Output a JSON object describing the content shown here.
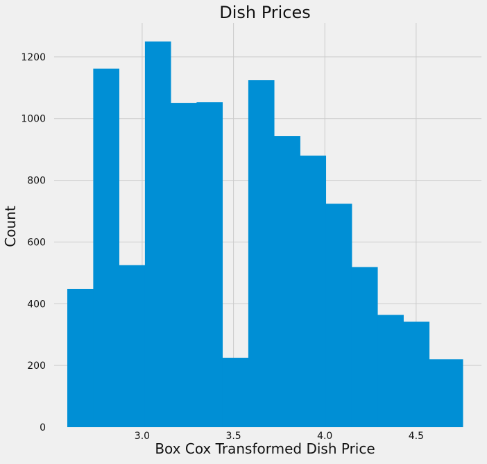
{
  "chart_data": {
    "type": "bar",
    "title": "Dish Prices",
    "xlabel": "Box Cox Transformed Dish Price",
    "ylabel": "Count",
    "xlim": [
      2.59,
      4.755
    ],
    "ylim": [
      0,
      1310
    ],
    "xticks": [
      3.0,
      3.5,
      4.0,
      4.5
    ],
    "xtick_labels": [
      "3.0",
      "3.5",
      "4.0",
      "4.5"
    ],
    "yticks": [
      0,
      200,
      400,
      600,
      800,
      1000,
      1200
    ],
    "ytick_labels": [
      "0",
      "200",
      "400",
      "600",
      "800",
      "1000",
      "1200"
    ],
    "grid": true,
    "bar_color": "#008fd5",
    "bins": [
      {
        "x0": 2.59,
        "x1": 2.732,
        "count": 448
      },
      {
        "x0": 2.732,
        "x1": 2.873,
        "count": 1162
      },
      {
        "x0": 2.873,
        "x1": 3.015,
        "count": 525
      },
      {
        "x0": 3.015,
        "x1": 3.156,
        "count": 1250
      },
      {
        "x0": 3.156,
        "x1": 3.298,
        "count": 1051
      },
      {
        "x0": 3.298,
        "x1": 3.439,
        "count": 1053
      },
      {
        "x0": 3.439,
        "x1": 3.581,
        "count": 225
      },
      {
        "x0": 3.581,
        "x1": 3.722,
        "count": 1125
      },
      {
        "x0": 3.722,
        "x1": 3.864,
        "count": 943
      },
      {
        "x0": 3.864,
        "x1": 4.005,
        "count": 880
      },
      {
        "x0": 4.005,
        "x1": 4.147,
        "count": 724
      },
      {
        "x0": 4.147,
        "x1": 4.288,
        "count": 519
      },
      {
        "x0": 4.288,
        "x1": 4.43,
        "count": 364
      },
      {
        "x0": 4.43,
        "x1": 4.571,
        "count": 342
      },
      {
        "x0": 4.571,
        "x1": 4.755,
        "count": 220
      }
    ]
  }
}
